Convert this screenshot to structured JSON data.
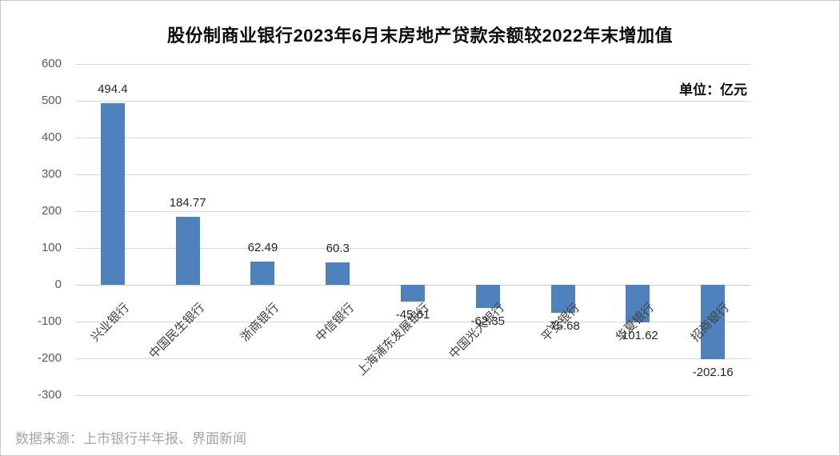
{
  "title": "股份制商业银行2023年6月末房地产贷款余额较2022年末增加值",
  "unit_label": "单位：亿元",
  "source_note": "数据来源：上市银行半年报、界面新闻",
  "colors": {
    "bar": "#4f81bd",
    "gridline": "#d9d9d9",
    "zero_axis": "#d0d0d0",
    "tick_text": "#595959",
    "value_text": "#262626",
    "category_text": "#404040",
    "title_text": "#0d0d0d",
    "source_text": "#a6a6a6"
  },
  "chart_data": {
    "type": "bar",
    "title": "股份制商业银行2023年6月末房地产贷款余额较2022年末增加值",
    "unit": "亿元",
    "categories": [
      "兴业银行",
      "中国民生银行",
      "浙商银行",
      "中信银行",
      "上海浦东发展银行",
      "中国光大银行",
      "平安银行",
      "华夏银行",
      "招商银行"
    ],
    "values": [
      494.4,
      184.77,
      62.49,
      60.3,
      -45.61,
      -62.35,
      -75.68,
      -101.62,
      -202.16
    ],
    "value_labels": [
      "494.4",
      "184.77",
      "62.49",
      "60.3",
      "-45.61",
      "-62.35",
      "-75.68",
      "-101.62",
      "-202.16"
    ],
    "y_tick_labels": [
      "600",
      "500",
      "400",
      "300",
      "200",
      "100",
      "0",
      "-100",
      "-200",
      "-300"
    ],
    "ylim": [
      -300,
      600
    ],
    "ytick_step": 100,
    "grid": true,
    "legend": "none",
    "xlabel": "",
    "ylabel": ""
  }
}
